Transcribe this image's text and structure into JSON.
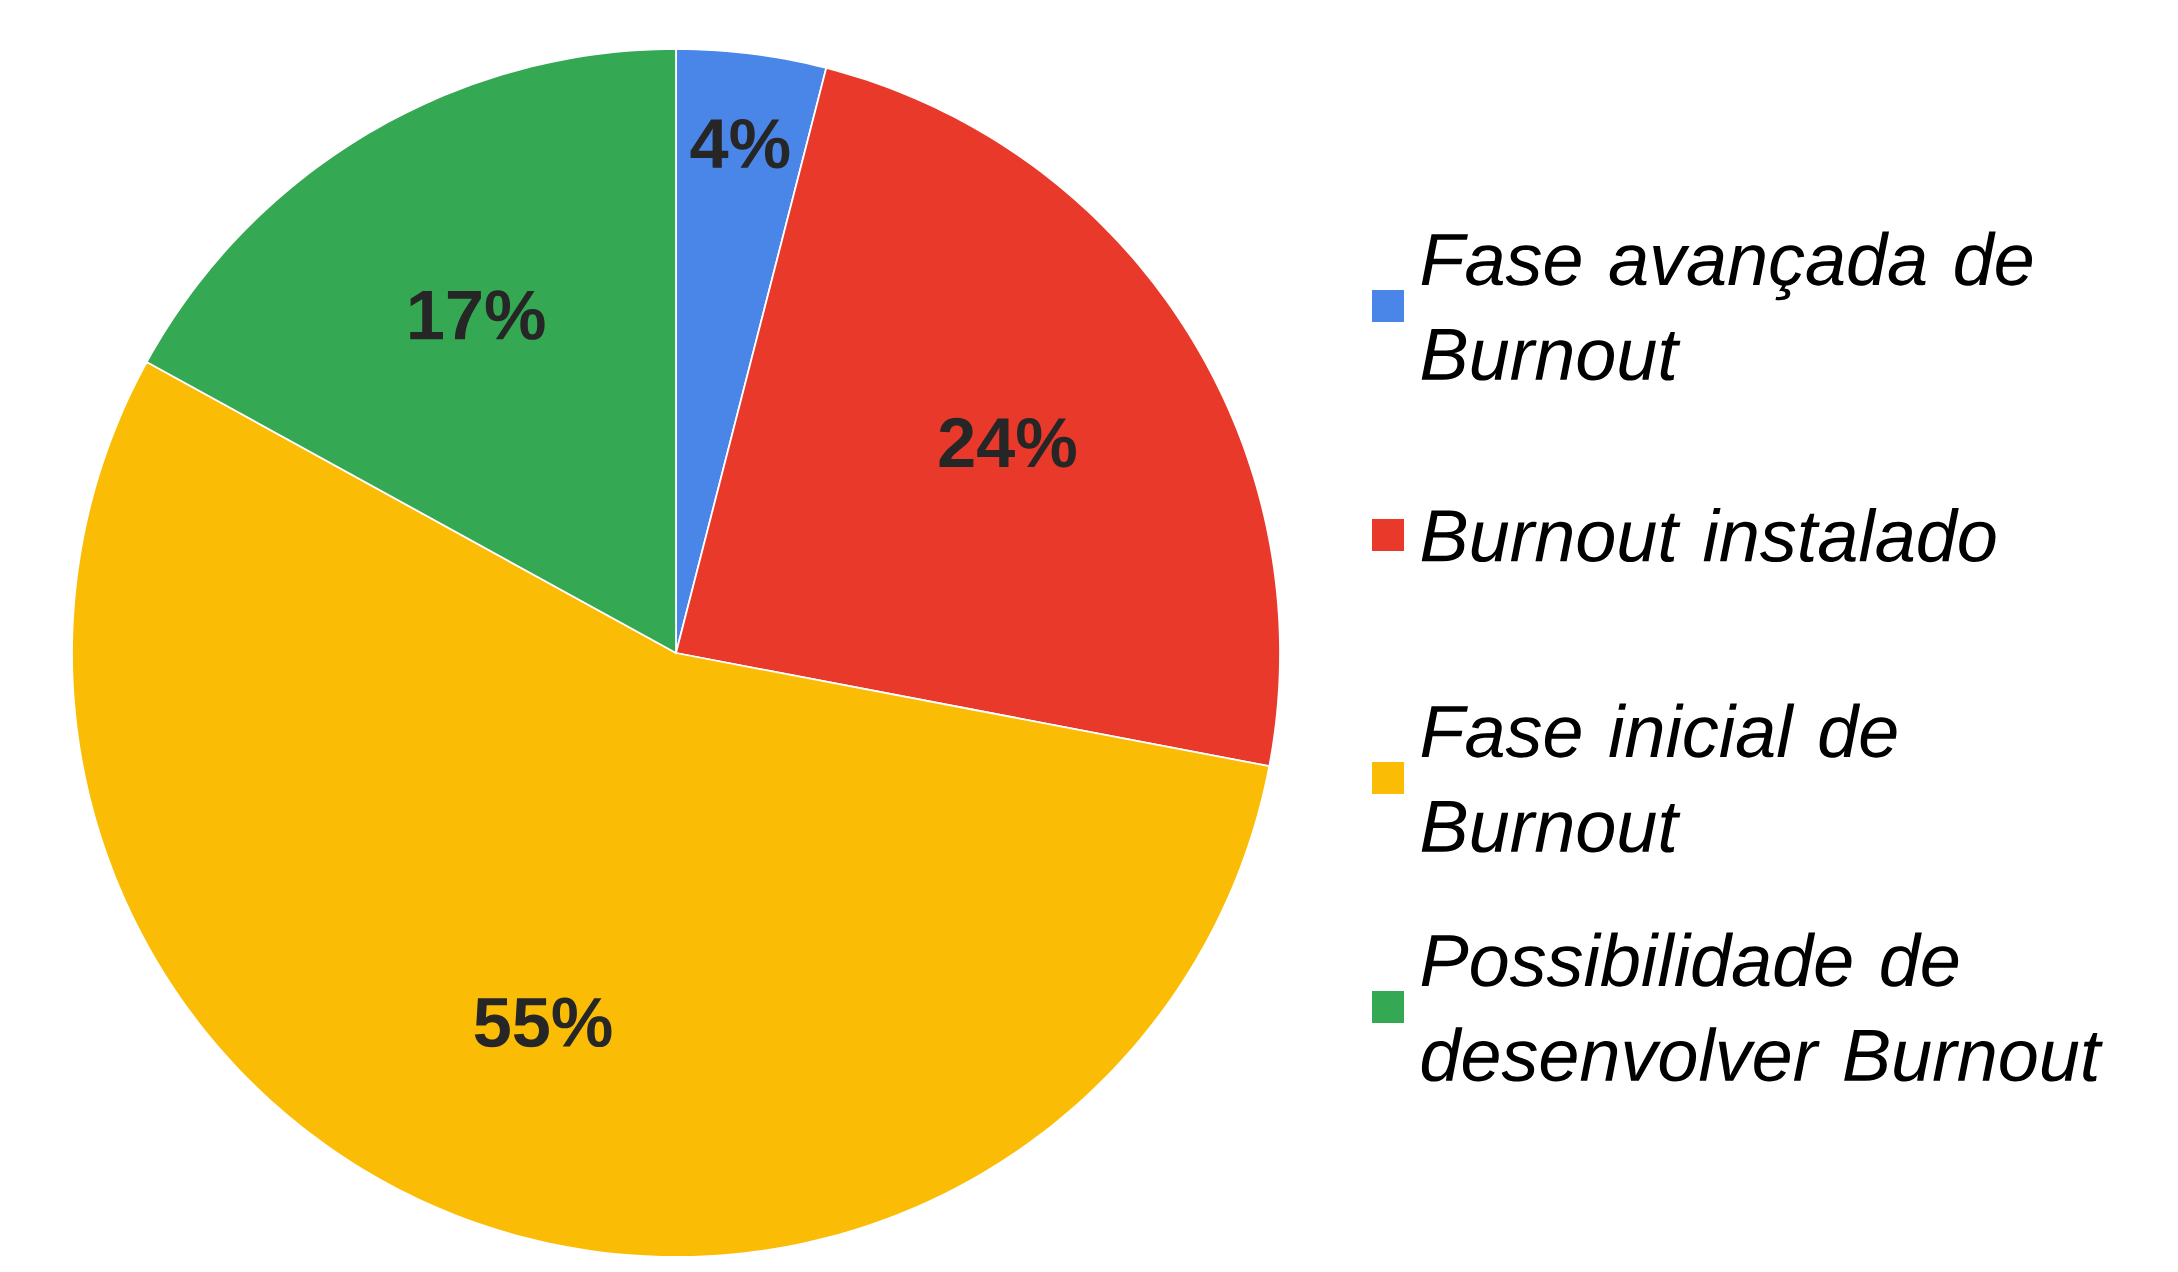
{
  "chart_data": {
    "type": "pie",
    "categories": [
      "Fase avançada de Burnout",
      "Burnout instalado",
      "Fase inicial de Burnout",
      "Possibilidade de desenvolver Burnout"
    ],
    "values": [
      4,
      24,
      55,
      17
    ],
    "colors": [
      "#4a86e8",
      "#e8392b",
      "#fbbc05",
      "#34a853"
    ],
    "value_labels": [
      "4%",
      "24%",
      "55%",
      "17%"
    ],
    "legend": "right"
  }
}
